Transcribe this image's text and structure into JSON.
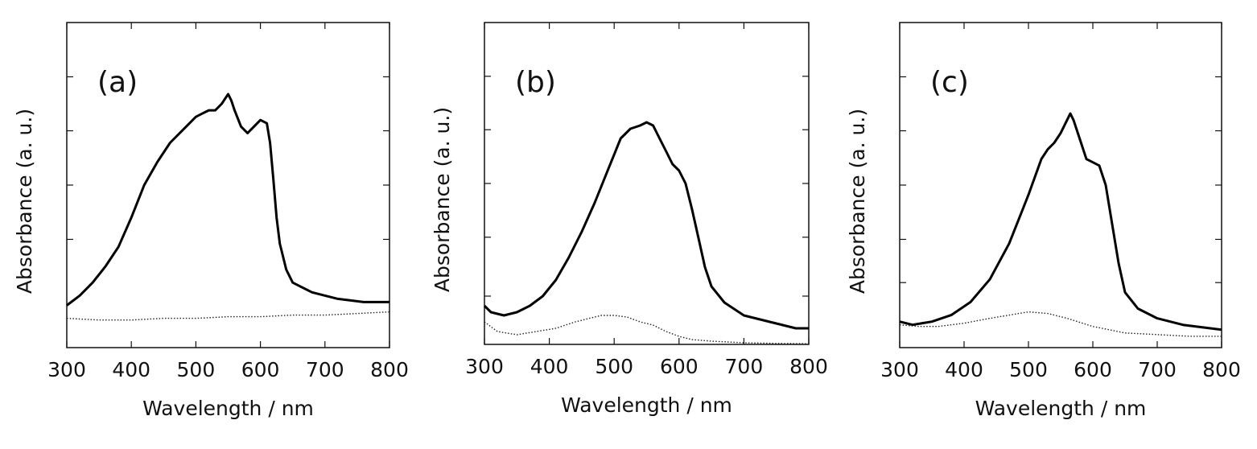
{
  "chart_data": [
    {
      "type": "line",
      "panel_label": "(a)",
      "xlabel": "Wavelength / nm",
      "ylabel": "Absorbance (a. u.)",
      "xlim": [
        300,
        800
      ],
      "ylim": [
        0,
        1.0
      ],
      "x_ticks": [
        300,
        400,
        500,
        600,
        700,
        800
      ],
      "y_ticks": [
        0.333,
        0.5,
        0.667,
        0.833
      ],
      "y_tick_labels_shown": false,
      "series": [
        {
          "name": "solid",
          "style": "solid",
          "x": [
            300,
            320,
            340,
            360,
            380,
            400,
            420,
            440,
            460,
            480,
            500,
            510,
            520,
            530,
            540,
            550,
            555,
            560,
            570,
            580,
            590,
            600,
            610,
            615,
            620,
            625,
            630,
            640,
            650,
            680,
            720,
            760,
            800
          ],
          "y": [
            0.13,
            0.16,
            0.2,
            0.25,
            0.31,
            0.4,
            0.5,
            0.57,
            0.63,
            0.67,
            0.71,
            0.72,
            0.73,
            0.73,
            0.75,
            0.78,
            0.76,
            0.73,
            0.68,
            0.66,
            0.68,
            0.7,
            0.69,
            0.63,
            0.52,
            0.4,
            0.32,
            0.24,
            0.2,
            0.17,
            0.15,
            0.14,
            0.14
          ]
        },
        {
          "name": "dotted",
          "style": "dotted",
          "x": [
            300,
            350,
            400,
            450,
            500,
            550,
            600,
            650,
            700,
            750,
            800
          ],
          "y": [
            0.09,
            0.085,
            0.085,
            0.09,
            0.09,
            0.095,
            0.095,
            0.1,
            0.1,
            0.105,
            0.11
          ]
        }
      ]
    },
    {
      "type": "line",
      "panel_label": "(b)",
      "xlabel": "Wavelength / nm",
      "ylabel": "Absorbance (a. u.)",
      "xlim": [
        300,
        800
      ],
      "ylim": [
        0,
        1.0
      ],
      "x_ticks": [
        300,
        400,
        500,
        600,
        700,
        800
      ],
      "y_ticks": [
        0.15,
        0.333,
        0.5,
        0.667,
        0.833
      ],
      "y_tick_labels_shown": false,
      "series": [
        {
          "name": "solid",
          "style": "solid",
          "x": [
            300,
            310,
            330,
            350,
            370,
            390,
            410,
            430,
            450,
            470,
            490,
            510,
            525,
            540,
            550,
            560,
            570,
            580,
            590,
            600,
            610,
            620,
            630,
            640,
            650,
            670,
            700,
            740,
            780,
            800
          ],
          "y": [
            0.12,
            0.1,
            0.09,
            0.1,
            0.12,
            0.15,
            0.2,
            0.27,
            0.35,
            0.44,
            0.54,
            0.64,
            0.67,
            0.68,
            0.69,
            0.68,
            0.64,
            0.6,
            0.56,
            0.54,
            0.5,
            0.42,
            0.33,
            0.24,
            0.18,
            0.13,
            0.09,
            0.07,
            0.05,
            0.05
          ]
        },
        {
          "name": "dotted",
          "style": "dotted",
          "x": [
            300,
            320,
            350,
            380,
            410,
            440,
            460,
            480,
            500,
            520,
            540,
            560,
            580,
            600,
            620,
            650,
            700,
            750,
            800
          ],
          "y": [
            0.07,
            0.04,
            0.03,
            0.04,
            0.05,
            0.07,
            0.08,
            0.09,
            0.09,
            0.085,
            0.07,
            0.06,
            0.04,
            0.025,
            0.015,
            0.01,
            0.005,
            0.003,
            0.002
          ]
        }
      ]
    },
    {
      "type": "line",
      "panel_label": "(c)",
      "xlabel": "Wavelength / nm",
      "ylabel": "Absorbance (a. u.)",
      "xlim": [
        300,
        800
      ],
      "ylim": [
        0,
        1.0
      ],
      "x_ticks": [
        300,
        400,
        500,
        600,
        700,
        800
      ],
      "y_ticks": [
        0.2,
        0.333,
        0.5,
        0.667,
        0.833
      ],
      "y_tick_labels_shown": false,
      "series": [
        {
          "name": "solid",
          "style": "solid",
          "x": [
            300,
            320,
            350,
            380,
            410,
            440,
            470,
            500,
            520,
            530,
            540,
            550,
            560,
            565,
            570,
            580,
            590,
            600,
            610,
            620,
            630,
            640,
            650,
            670,
            700,
            740,
            780,
            800
          ],
          "y": [
            0.08,
            0.07,
            0.08,
            0.1,
            0.14,
            0.21,
            0.32,
            0.47,
            0.58,
            0.61,
            0.63,
            0.66,
            0.7,
            0.72,
            0.7,
            0.64,
            0.58,
            0.57,
            0.56,
            0.5,
            0.38,
            0.26,
            0.17,
            0.12,
            0.09,
            0.07,
            0.06,
            0.055
          ]
        },
        {
          "name": "dotted",
          "style": "dotted",
          "x": [
            300,
            330,
            360,
            400,
            440,
            470,
            500,
            530,
            560,
            600,
            650,
            700,
            750,
            800
          ],
          "y": [
            0.07,
            0.065,
            0.065,
            0.075,
            0.09,
            0.1,
            0.11,
            0.105,
            0.09,
            0.065,
            0.045,
            0.04,
            0.035,
            0.035
          ]
        }
      ]
    }
  ]
}
